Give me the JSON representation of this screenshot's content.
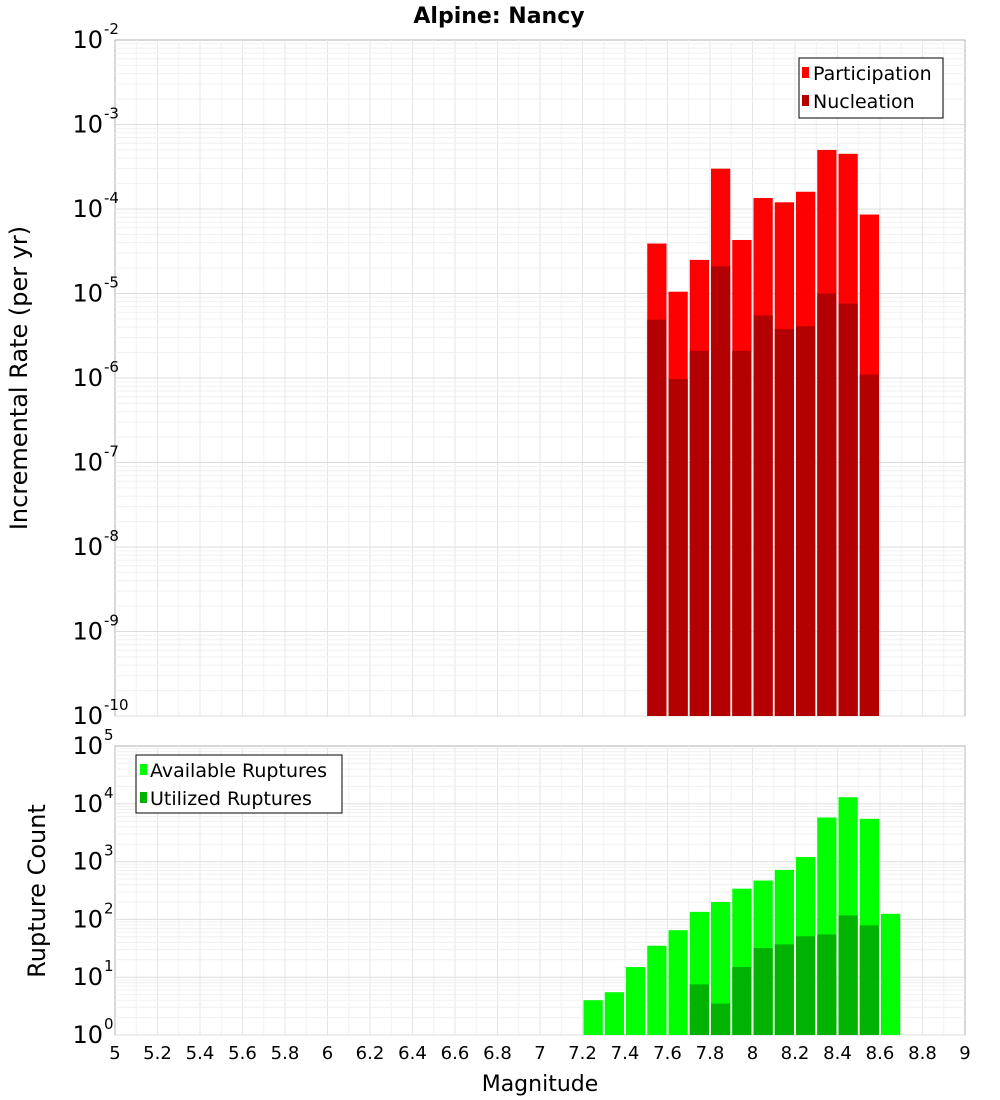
{
  "chart_data": {
    "type": "bar",
    "title": "Alpine: Nancy",
    "xlabel": "Magnitude",
    "xlim": [
      5,
      9
    ],
    "x_ticks": [
      "5",
      "5.2",
      "5.4",
      "5.6",
      "5.8",
      "6",
      "6.2",
      "6.4",
      "6.6",
      "6.8",
      "7",
      "7.2",
      "7.4",
      "7.6",
      "7.8",
      "8",
      "8.2",
      "8.4",
      "8.6",
      "8.8",
      "9"
    ],
    "bin_width": 0.1,
    "grid": true,
    "panels": [
      {
        "ylabel": "Incremental Rate (per yr)",
        "yscale": "log",
        "ylim": [
          1e-10,
          0.01
        ],
        "y_tick_exponents": [
          "-10",
          "-9",
          "-8",
          "-7",
          "-6",
          "-5",
          "-4",
          "-3",
          "-2"
        ],
        "legend_position": "top-right",
        "series": [
          {
            "name": "Participation",
            "color": "#ff0000",
            "x": [
              7.55,
              7.65,
              7.75,
              7.85,
              7.95,
              8.05,
              8.15,
              8.25,
              8.35,
              8.45,
              8.55
            ],
            "values": [
              3.9e-05,
              1.05e-05,
              2.5e-05,
              0.0003,
              4.3e-05,
              0.000135,
              0.00012,
              0.00016,
              0.0005,
              0.00045,
              8.6e-05
            ]
          },
          {
            "name": "Nucleation",
            "color": "#b30000",
            "x": [
              7.55,
              7.65,
              7.75,
              7.85,
              7.95,
              8.05,
              8.15,
              8.25,
              8.35,
              8.45,
              8.55
            ],
            "values": [
              4.9e-06,
              9.7e-07,
              2.1e-06,
              2.1e-05,
              2.1e-06,
              5.5e-06,
              3.8e-06,
              4.1e-06,
              1e-05,
              7.6e-06,
              1.1e-06
            ]
          }
        ]
      },
      {
        "ylabel": "Rupture Count",
        "yscale": "log",
        "ylim": [
          1,
          100000
        ],
        "y_tick_exponents": [
          "0",
          "1",
          "2",
          "3",
          "4",
          "5"
        ],
        "legend_position": "top-left",
        "series": [
          {
            "name": "Available Ruptures",
            "color": "#00ff00",
            "x": [
              6.65,
              6.95,
              7.05,
              7.15,
              7.25,
              7.35,
              7.45,
              7.55,
              7.65,
              7.75,
              7.85,
              7.95,
              8.05,
              8.15,
              8.25,
              8.35,
              8.45,
              8.55,
              8.65
            ],
            "values": [
              1,
              1,
              1,
              1,
              4,
              5.5,
              15,
              35,
              65,
              135,
              200,
              340,
              470,
              720,
              1200,
              5800,
              13000,
              5500,
              125
            ]
          },
          {
            "name": "Utilized Ruptures",
            "color": "#00b300",
            "x": [
              7.55,
              7.65,
              7.75,
              7.85,
              7.95,
              8.05,
              8.15,
              8.25,
              8.35,
              8.45,
              8.55
            ],
            "values": [
              1,
              1,
              7.5,
              3.5,
              15,
              32,
              37,
              51,
              55,
              117,
              79
            ]
          }
        ]
      }
    ]
  }
}
